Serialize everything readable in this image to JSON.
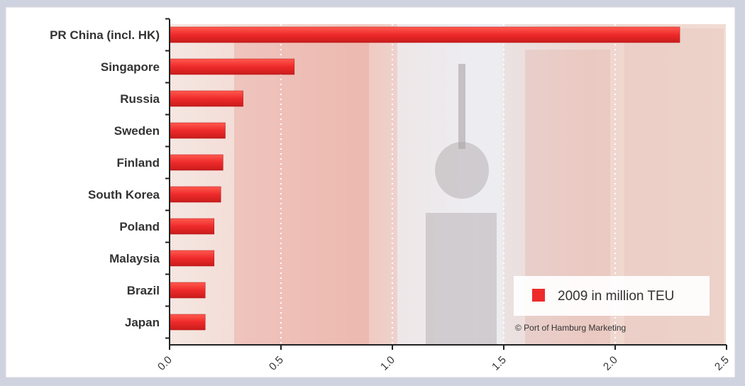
{
  "chart_data": {
    "type": "bar",
    "orientation": "horizontal",
    "categories": [
      "PR China (incl. HK)",
      "Singapore",
      "Russia",
      "Sweden",
      "Finland",
      "South Korea",
      "Poland",
      "Malaysia",
      "Brazil",
      "Japan"
    ],
    "series": [
      {
        "name": "2009 in million TEU",
        "values": [
          2.29,
          0.56,
          0.33,
          0.25,
          0.24,
          0.23,
          0.2,
          0.2,
          0.16,
          0.16
        ]
      }
    ],
    "xlim": [
      0,
      2.5
    ],
    "xticks": [
      "0.0",
      "0.5",
      "1.0",
      "1.5",
      "2.0",
      "2.5"
    ],
    "grid": "vertical dotted",
    "legend_position": "bottom-right",
    "bar_color": "#ee2a2a",
    "credit": "© Port of Hamburg Marketing"
  }
}
